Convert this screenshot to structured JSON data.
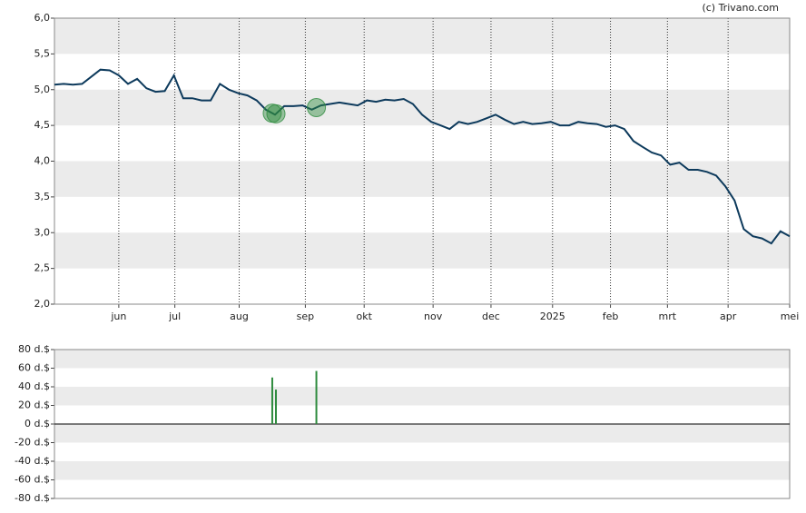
{
  "credit": "(c) Trivano.com",
  "chart_data": [
    {
      "type": "line",
      "color": "#0d3a5c",
      "xlim": [
        0,
        80
      ],
      "ylim": [
        2,
        6
      ],
      "xticks": [
        {
          "value": 7,
          "label": "jun"
        },
        {
          "value": 13.1,
          "label": "jul"
        },
        {
          "value": 20.1,
          "label": "aug"
        },
        {
          "value": 27.3,
          "label": "sep"
        },
        {
          "value": 33.7,
          "label": "okt"
        },
        {
          "value": 41.2,
          "label": "nov"
        },
        {
          "value": 47.5,
          "label": "dec"
        },
        {
          "value": 54.2,
          "label": "2025"
        },
        {
          "value": 60.5,
          "label": "feb"
        },
        {
          "value": 66.7,
          "label": "mrt"
        },
        {
          "value": 73.3,
          "label": "apr"
        },
        {
          "value": 80,
          "label": "mei"
        }
      ],
      "yticks": [
        {
          "value": 2,
          "label": "2,0"
        },
        {
          "value": 2.5,
          "label": "2,5"
        },
        {
          "value": 3,
          "label": "3,0"
        },
        {
          "value": 3.5,
          "label": "3,5"
        },
        {
          "value": 4,
          "label": "4,0"
        },
        {
          "value": 4.5,
          "label": "4,5"
        },
        {
          "value": 5,
          "label": "5,0"
        },
        {
          "value": 5.5,
          "label": "5,5"
        },
        {
          "value": 6,
          "label": "6,0"
        }
      ],
      "values": [
        5.07,
        5.08,
        5.07,
        5.08,
        5.18,
        5.28,
        5.27,
        5.2,
        5.08,
        5.15,
        5.02,
        4.97,
        4.98,
        5.2,
        4.88,
        4.88,
        4.85,
        4.85,
        5.08,
        5.0,
        4.95,
        4.92,
        4.85,
        4.72,
        4.65,
        4.77,
        4.77,
        4.78,
        4.72,
        4.78,
        4.8,
        4.82,
        4.8,
        4.78,
        4.85,
        4.83,
        4.86,
        4.85,
        4.87,
        4.8,
        4.65,
        4.55,
        4.5,
        4.45,
        4.55,
        4.52,
        4.55,
        4.6,
        4.65,
        4.58,
        4.52,
        4.55,
        4.52,
        4.53,
        4.55,
        4.5,
        4.5,
        4.55,
        4.53,
        4.52,
        4.48,
        4.5,
        4.45,
        4.28,
        4.2,
        4.12,
        4.08,
        3.95,
        3.98,
        3.88,
        3.88,
        3.85,
        3.8,
        3.65,
        3.45,
        3.05,
        2.95,
        2.92,
        2.85,
        3.02,
        2.95
      ]
    },
    {
      "type": "bar",
      "color": "#2e8b3e",
      "xlim": [
        0,
        80
      ],
      "ylim": [
        -80,
        80
      ],
      "yticks": [
        {
          "value": -80,
          "label": "-80 d.$"
        },
        {
          "value": -60,
          "label": "-60 d.$"
        },
        {
          "value": -40,
          "label": "-40 d.$"
        },
        {
          "value": -20,
          "label": "-20 d.$"
        },
        {
          "value": 0,
          "label": "0 d.$"
        },
        {
          "value": 20,
          "label": "20 d.$"
        },
        {
          "value": 40,
          "label": "40 d.$"
        },
        {
          "value": 60,
          "label": "60 d.$"
        },
        {
          "value": 80,
          "label": "80 d.$"
        }
      ],
      "x": [
        23.7,
        24.1,
        28.5
      ],
      "values": [
        50,
        37,
        57
      ]
    }
  ]
}
